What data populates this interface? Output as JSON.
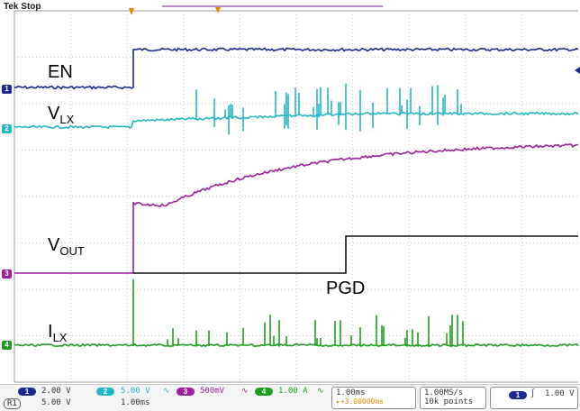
{
  "header": {
    "status": "Tek Stop"
  },
  "labels": {
    "en": "EN",
    "vlx_main": "V",
    "vlx_sub": "LX",
    "vout_main": "V",
    "vout_sub": "OUT",
    "pgd": "PGD",
    "ilx_main": "I",
    "ilx_sub": "LX"
  },
  "markers": {
    "ch1": "1",
    "ch2": "2",
    "ch3": "3",
    "ch4": "4"
  },
  "readout": {
    "ch1_num": "1",
    "ch1_scale": "2.00 V",
    "ch2_num": "2",
    "ch2_scale": "5.00 V",
    "ch3_num": "3",
    "ch3_scale": "500mV",
    "ch4_num": "4",
    "ch4_scale": "1.00 A",
    "ref_num": "R1",
    "ref_scale": "5.00 V",
    "ref_time": "1.00ms",
    "timebase": "1.00ms",
    "trigger_pos": "▸+3.00000ms",
    "sample_rate": "1.00MS/s",
    "record_length": "10k points",
    "trig_num": "1",
    "trig_level": "1.00 V"
  },
  "colors": {
    "ch1": "#1b2a8f",
    "ch2": "#25b6c4",
    "ch3": "#9c1f9c",
    "ch4": "#1e9e1e",
    "pgd": "#111111",
    "grid": "#c9c9c9",
    "trigger": "#e08a00"
  }
}
